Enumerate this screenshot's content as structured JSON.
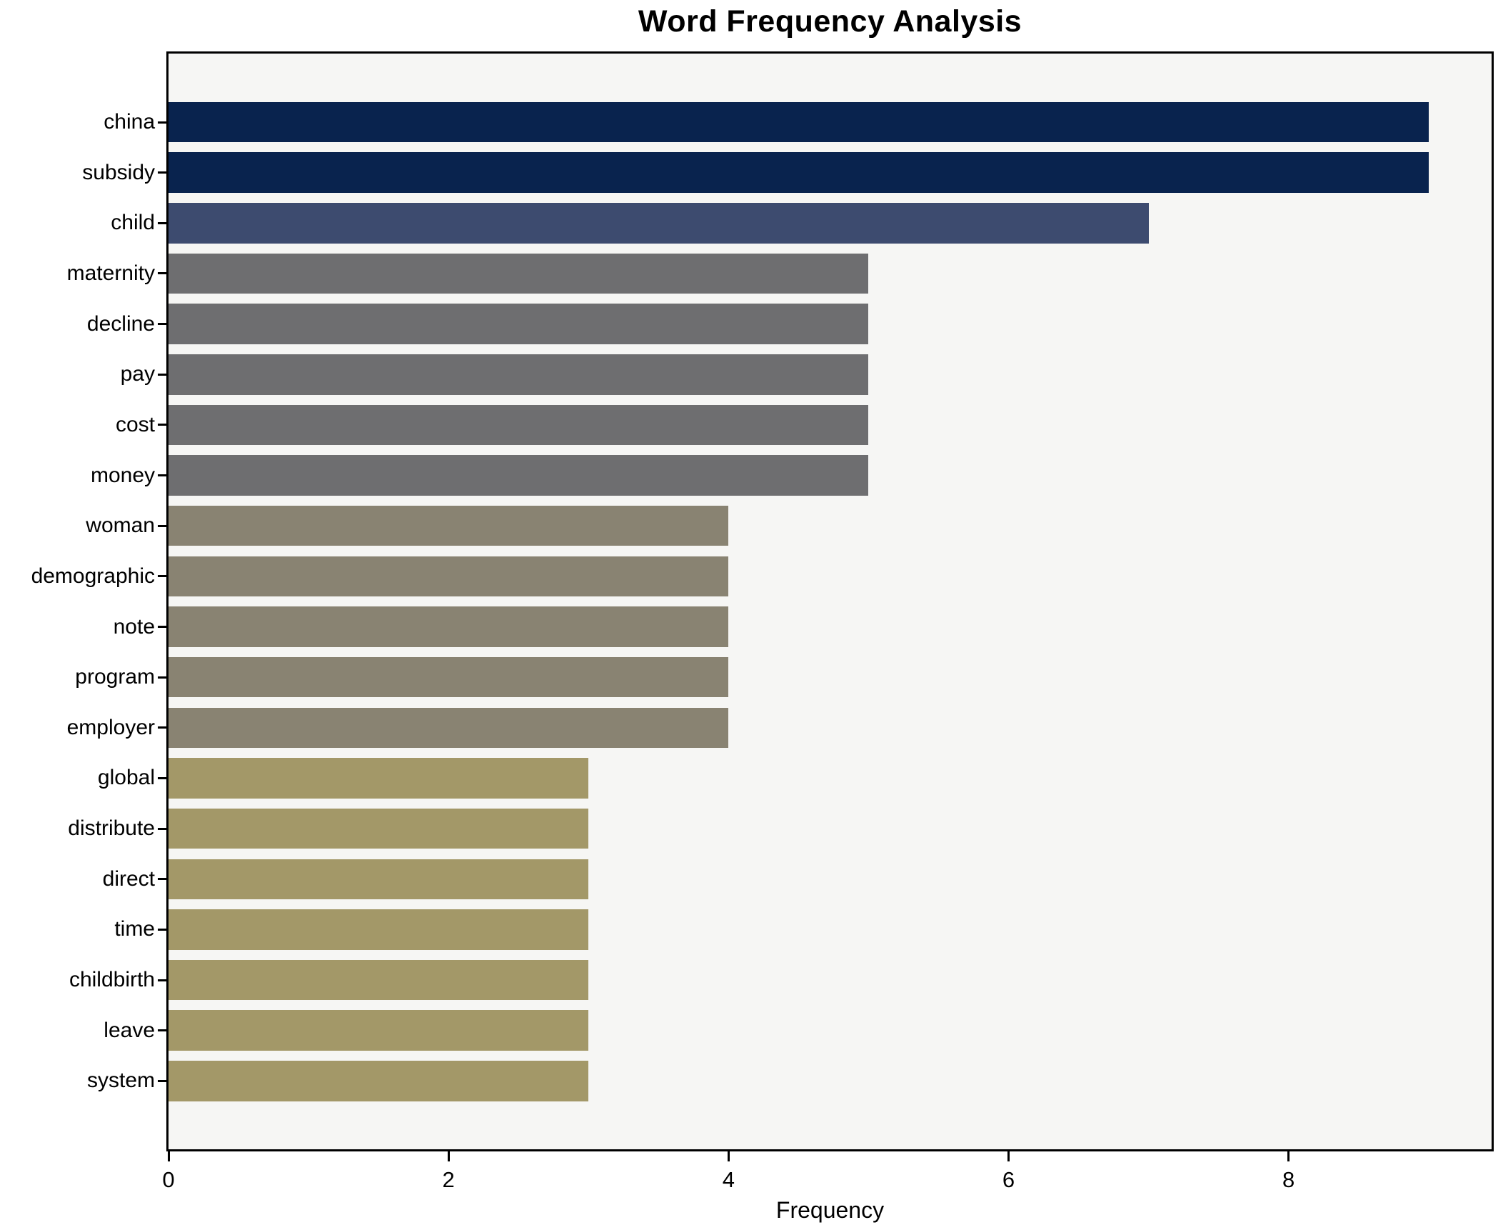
{
  "chart_data": {
    "type": "bar",
    "orientation": "horizontal",
    "title": "Word Frequency Analysis",
    "xlabel": "Frequency",
    "ylabel": "",
    "categories": [
      "china",
      "subsidy",
      "child",
      "maternity",
      "decline",
      "pay",
      "cost",
      "money",
      "woman",
      "demographic",
      "note",
      "program",
      "employer",
      "global",
      "distribute",
      "direct",
      "time",
      "childbirth",
      "leave",
      "system"
    ],
    "values": [
      9,
      9,
      7,
      5,
      5,
      5,
      5,
      5,
      4,
      4,
      4,
      4,
      4,
      3,
      3,
      3,
      3,
      3,
      3,
      3
    ],
    "bar_colors": [
      "#09234e",
      "#09234e",
      "#3d4b6f",
      "#6e6e70",
      "#6e6e70",
      "#6e6e70",
      "#6e6e70",
      "#6e6e70",
      "#898372",
      "#898372",
      "#898372",
      "#898372",
      "#898372",
      "#a39868",
      "#a39868",
      "#a39868",
      "#a39868",
      "#a39868",
      "#a39868",
      "#a39868"
    ],
    "xlim": [
      0,
      9.45
    ],
    "xticks": [
      0,
      2,
      4,
      6,
      8
    ],
    "grid": false,
    "legend_position": "none",
    "plot_background": "#f6f6f4",
    "figure_background": "#ffffff",
    "spine_color": "#000000"
  }
}
